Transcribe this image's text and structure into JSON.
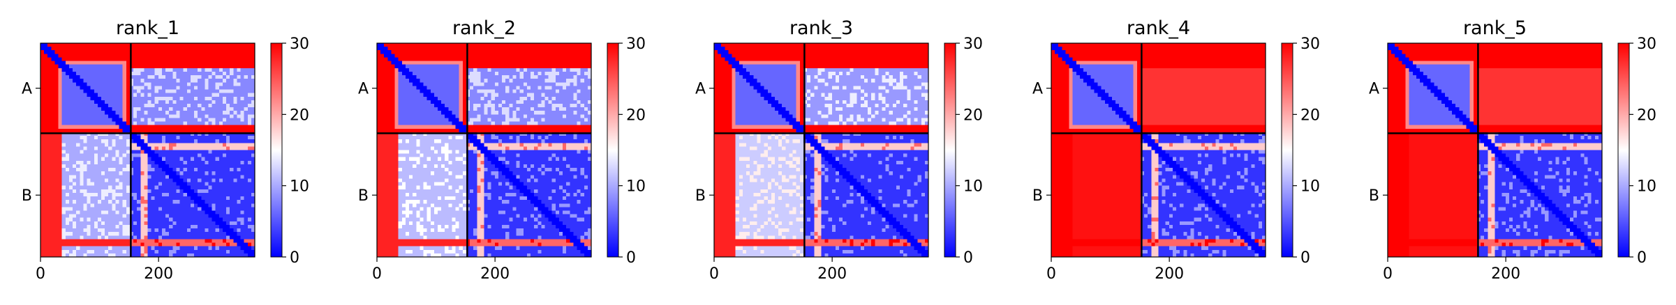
{
  "chart_data": {
    "type": "heatmap",
    "colormap": {
      "low": "#0000ff",
      "mid": "#ffffff",
      "high": "#ff0000"
    },
    "colorbar": {
      "range": [
        0,
        30
      ],
      "ticks": [
        0,
        10,
        20,
        30
      ],
      "tick_labels": [
        "0",
        "10",
        "20",
        "30"
      ]
    },
    "x_axis": {
      "range": [
        0,
        363
      ],
      "ticks": [
        0,
        200
      ],
      "tick_labels": [
        "0",
        "200"
      ]
    },
    "chains": [
      {
        "label": "A",
        "start": 0,
        "end": 153
      },
      {
        "label": "B",
        "start": 153,
        "end": 363
      }
    ],
    "chain_boundary": 153,
    "panels": [
      {
        "title": "rank_1",
        "approx_values": {
          "AA_core": 6,
          "AA_termini": 30,
          "AB": 8,
          "BA_core": 10,
          "BA_termini": 28,
          "BB": 3
        }
      },
      {
        "title": "rank_2",
        "approx_values": {
          "AA_core": 6,
          "AA_termini": 30,
          "AB": 8,
          "BA_core": 11,
          "BA_termini": 28,
          "BB": 3
        }
      },
      {
        "title": "rank_3",
        "approx_values": {
          "AA_core": 6,
          "AA_termini": 30,
          "AB": 9,
          "BA_core": 12,
          "BA_termini": 28,
          "BB": 3
        }
      },
      {
        "title": "rank_4",
        "approx_values": {
          "AA_core": 6,
          "AA_termini": 30,
          "AB": 27,
          "BA_core": 29,
          "BA_termini": 30,
          "BB": 3
        }
      },
      {
        "title": "rank_5",
        "approx_values": {
          "AA_core": 6,
          "AA_termini": 30,
          "AB": 27,
          "BA_core": 29,
          "BA_termini": 30,
          "BB": 3
        }
      }
    ]
  }
}
